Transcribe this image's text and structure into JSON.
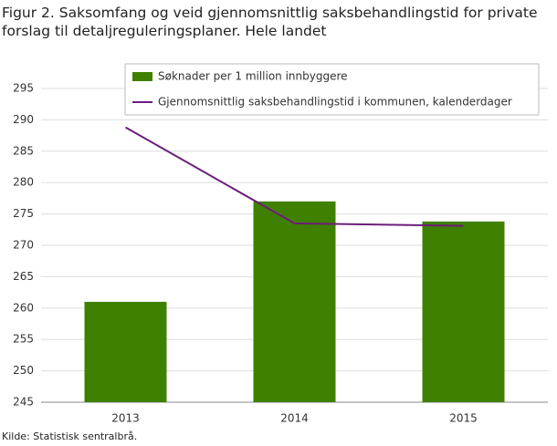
{
  "chart_data": {
    "type": "bar",
    "title": "Figur 2. Saksomfang og veid gjennomsnittlig saksbehandlingstid for private forslag til detaljreguleringsplaner. Hele landet",
    "categories": [
      "2013",
      "2014",
      "2015"
    ],
    "series": [
      {
        "name": "Søknader per 1 million innbyggere",
        "type": "bar",
        "color": "#3f8000",
        "values": [
          261,
          277,
          273.8
        ]
      },
      {
        "name": "Gjennomsnittlig saksbehandlingstid i kommunen, kalenderdager",
        "type": "line",
        "color": "#6b1e7b",
        "values": [
          288.8,
          273.5,
          273.1
        ]
      }
    ],
    "ylim": [
      245,
      295
    ],
    "yticks": [
      245,
      250,
      255,
      260,
      265,
      270,
      275,
      280,
      285,
      290,
      295
    ],
    "grid": true,
    "source": "Kilde: Statistisk sentralbrå."
  }
}
